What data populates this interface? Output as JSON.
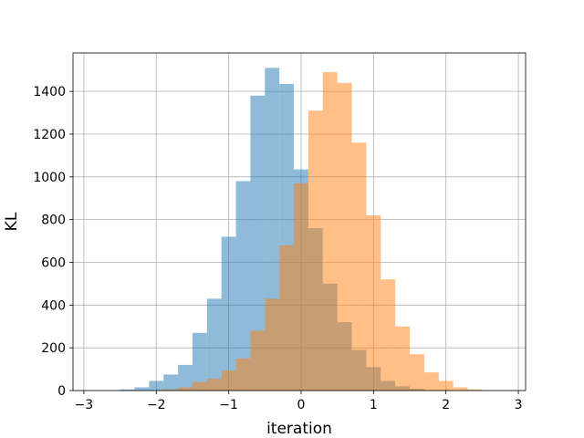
{
  "chart_data": {
    "type": "histogram",
    "xlabel": "iteration",
    "ylabel": "KL",
    "xlim": [
      -3.15,
      3.1
    ],
    "ylim": [
      0,
      1580
    ],
    "xticks": [
      -3,
      -2,
      -1,
      0,
      1,
      2,
      3
    ],
    "yticks": [
      0,
      200,
      400,
      600,
      800,
      1000,
      1200,
      1400
    ],
    "xtick_labels": [
      "−3",
      "−2",
      "−1",
      "0",
      "1",
      "2",
      "3"
    ],
    "ytick_labels": [
      "0",
      "200",
      "400",
      "600",
      "800",
      "1000",
      "1200",
      "1400"
    ],
    "grid": true,
    "series": [
      {
        "color": "#1f77b4",
        "opacity": 0.5,
        "bins": [
          {
            "x0": -2.5,
            "x1": -2.3,
            "y": 5
          },
          {
            "x0": -2.3,
            "x1": -2.1,
            "y": 15
          },
          {
            "x0": -2.1,
            "x1": -1.9,
            "y": 45
          },
          {
            "x0": -1.9,
            "x1": -1.7,
            "y": 75
          },
          {
            "x0": -1.7,
            "x1": -1.5,
            "y": 120
          },
          {
            "x0": -1.5,
            "x1": -1.3,
            "y": 270
          },
          {
            "x0": -1.3,
            "x1": -1.1,
            "y": 430
          },
          {
            "x0": -1.1,
            "x1": -0.9,
            "y": 720
          },
          {
            "x0": -0.9,
            "x1": -0.7,
            "y": 980
          },
          {
            "x0": -0.7,
            "x1": -0.5,
            "y": 1380
          },
          {
            "x0": -0.5,
            "x1": -0.3,
            "y": 1510
          },
          {
            "x0": -0.3,
            "x1": -0.1,
            "y": 1435
          },
          {
            "x0": -0.1,
            "x1": 0.1,
            "y": 1035
          },
          {
            "x0": 0.1,
            "x1": 0.3,
            "y": 760
          },
          {
            "x0": 0.3,
            "x1": 0.5,
            "y": 500
          },
          {
            "x0": 0.5,
            "x1": 0.7,
            "y": 320
          },
          {
            "x0": 0.7,
            "x1": 0.9,
            "y": 190
          },
          {
            "x0": 0.9,
            "x1": 1.1,
            "y": 110
          },
          {
            "x0": 1.1,
            "x1": 1.3,
            "y": 45
          },
          {
            "x0": 1.3,
            "x1": 1.5,
            "y": 20
          },
          {
            "x0": 1.5,
            "x1": 1.7,
            "y": 8
          }
        ]
      },
      {
        "color": "#ff7f0e",
        "opacity": 0.5,
        "bins": [
          {
            "x0": -1.9,
            "x1": -1.7,
            "y": 5
          },
          {
            "x0": -1.7,
            "x1": -1.5,
            "y": 15
          },
          {
            "x0": -1.5,
            "x1": -1.3,
            "y": 40
          },
          {
            "x0": -1.3,
            "x1": -1.1,
            "y": 55
          },
          {
            "x0": -1.1,
            "x1": -0.9,
            "y": 95
          },
          {
            "x0": -0.9,
            "x1": -0.7,
            "y": 150
          },
          {
            "x0": -0.7,
            "x1": -0.5,
            "y": 280
          },
          {
            "x0": -0.5,
            "x1": -0.3,
            "y": 430
          },
          {
            "x0": -0.3,
            "x1": -0.1,
            "y": 680
          },
          {
            "x0": -0.1,
            "x1": 0.1,
            "y": 970
          },
          {
            "x0": 0.1,
            "x1": 0.3,
            "y": 1310
          },
          {
            "x0": 0.3,
            "x1": 0.5,
            "y": 1490
          },
          {
            "x0": 0.5,
            "x1": 0.7,
            "y": 1440
          },
          {
            "x0": 0.7,
            "x1": 0.9,
            "y": 1160
          },
          {
            "x0": 0.9,
            "x1": 1.1,
            "y": 820
          },
          {
            "x0": 1.1,
            "x1": 1.3,
            "y": 520
          },
          {
            "x0": 1.3,
            "x1": 1.5,
            "y": 300
          },
          {
            "x0": 1.5,
            "x1": 1.7,
            "y": 170
          },
          {
            "x0": 1.7,
            "x1": 1.9,
            "y": 85
          },
          {
            "x0": 1.9,
            "x1": 2.1,
            "y": 45
          },
          {
            "x0": 2.1,
            "x1": 2.3,
            "y": 15
          },
          {
            "x0": 2.3,
            "x1": 2.5,
            "y": 5
          }
        ]
      }
    ]
  }
}
